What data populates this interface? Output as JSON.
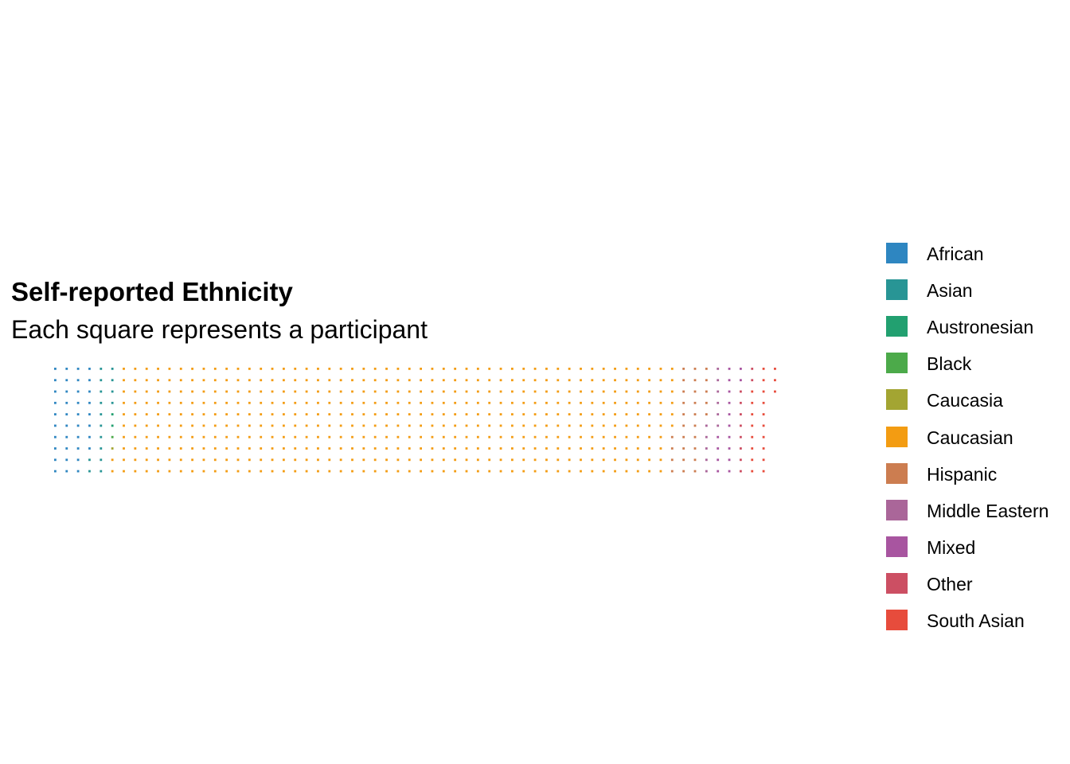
{
  "chart_data": {
    "type": "waffle",
    "title": "Self-reported Ethnicity",
    "subtitle": "Each square represents a participant",
    "rows_per_column": 10,
    "categories": [
      {
        "name": "African",
        "color": "#2e86c1",
        "count": 38
      },
      {
        "name": "Asian",
        "color": "#289595",
        "count": 16
      },
      {
        "name": "Austronesian",
        "color": "#22a070",
        "count": 2
      },
      {
        "name": "Black",
        "color": "#4caa4a",
        "count": 1
      },
      {
        "name": "Caucasia",
        "color": "#a3a532",
        "count": 1
      },
      {
        "name": "Caucasian",
        "color": "#f39c12",
        "count": 488
      },
      {
        "name": "Hispanic",
        "color": "#cc7d50",
        "count": 29
      },
      {
        "name": "Middle Eastern",
        "color": "#aa6699",
        "count": 11
      },
      {
        "name": "Mixed",
        "color": "#a855a0",
        "count": 16
      },
      {
        "name": "Other",
        "color": "#cc4f63",
        "count": 10
      },
      {
        "name": "South Asian",
        "color": "#e74c3c",
        "count": 21
      }
    ]
  }
}
